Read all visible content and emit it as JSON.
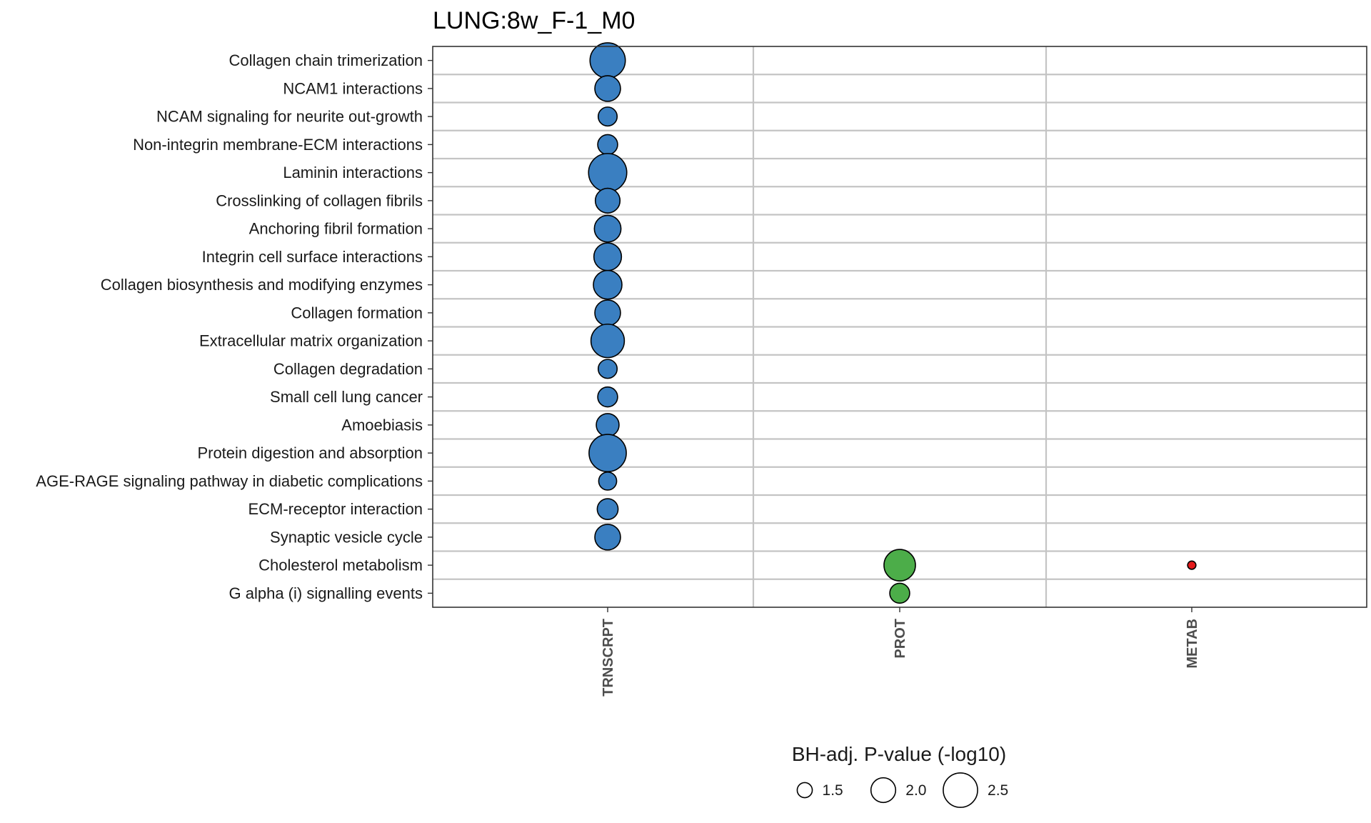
{
  "chart_data": {
    "type": "scatter",
    "title": "LUNG:8w_F-1_M0",
    "x_categories": [
      "TRNSCRPT",
      "PROT",
      "METAB"
    ],
    "y_categories": [
      "Collagen chain trimerization",
      "NCAM1 interactions",
      "NCAM signaling for neurite out-growth",
      "Non-integrin membrane-ECM interactions",
      "Laminin interactions",
      "Crosslinking of collagen fibrils",
      "Anchoring fibril formation",
      "Integrin cell surface interactions",
      "Collagen biosynthesis and modifying enzymes",
      "Collagen formation",
      "Extracellular matrix organization",
      "Collagen degradation",
      "Small cell lung cancer",
      "Amoebiasis",
      "Protein digestion and absorption",
      "AGE-RAGE signaling pathway in diabetic complications",
      "ECM-receptor interaction",
      "Synaptic vesicle cycle",
      "Cholesterol metabolism",
      "G alpha (i) signalling events"
    ],
    "points": [
      {
        "y": "Collagen chain trimerization",
        "x": "TRNSCRPT",
        "size": 2.55
      },
      {
        "y": "NCAM1 interactions",
        "x": "TRNSCRPT",
        "size": 2.05
      },
      {
        "y": "NCAM signaling for neurite out-growth",
        "x": "TRNSCRPT",
        "size": 1.7
      },
      {
        "y": "Non-integrin membrane-ECM interactions",
        "x": "TRNSCRPT",
        "size": 1.75
      },
      {
        "y": "Laminin interactions",
        "x": "TRNSCRPT",
        "size": 2.7
      },
      {
        "y": "Crosslinking of collagen fibrils",
        "x": "TRNSCRPT",
        "size": 2.0
      },
      {
        "y": "Anchoring fibril formation",
        "x": "TRNSCRPT",
        "size": 2.1
      },
      {
        "y": "Integrin cell surface interactions",
        "x": "TRNSCRPT",
        "size": 2.15
      },
      {
        "y": "Collagen biosynthesis and modifying enzymes",
        "x": "TRNSCRPT",
        "size": 2.2
      },
      {
        "y": "Collagen formation",
        "x": "TRNSCRPT",
        "size": 2.05
      },
      {
        "y": "Extracellular matrix organization",
        "x": "TRNSCRPT",
        "size": 2.45
      },
      {
        "y": "Collagen degradation",
        "x": "TRNSCRPT",
        "size": 1.7
      },
      {
        "y": "Small cell lung cancer",
        "x": "TRNSCRPT",
        "size": 1.75
      },
      {
        "y": "Amoebiasis",
        "x": "TRNSCRPT",
        "size": 1.9
      },
      {
        "y": "Protein digestion and absorption",
        "x": "TRNSCRPT",
        "size": 2.65
      },
      {
        "y": "AGE-RAGE signaling pathway in diabetic complications",
        "x": "TRNSCRPT",
        "size": 1.65
      },
      {
        "y": "ECM-receptor interaction",
        "x": "TRNSCRPT",
        "size": 1.8
      },
      {
        "y": "Synaptic vesicle cycle",
        "x": "TRNSCRPT",
        "size": 2.05
      },
      {
        "y": "Cholesterol metabolism",
        "x": "PROT",
        "size": 2.35
      },
      {
        "y": "G alpha (i) signalling events",
        "x": "PROT",
        "size": 1.75
      },
      {
        "y": "Cholesterol metabolism",
        "x": "METAB",
        "size": 1.15
      }
    ],
    "colors": {
      "TRNSCRPT": "#3a7fc1",
      "PROT": "#4cad49",
      "METAB": "#e41a1c"
    },
    "size_legend": {
      "title": "BH-adj. P-value (-log10)",
      "breaks": [
        1.5,
        2.0,
        2.5
      ],
      "labels": [
        "1.5",
        "2.0",
        "2.5"
      ]
    },
    "grid": true,
    "legend_position": "bottom"
  }
}
